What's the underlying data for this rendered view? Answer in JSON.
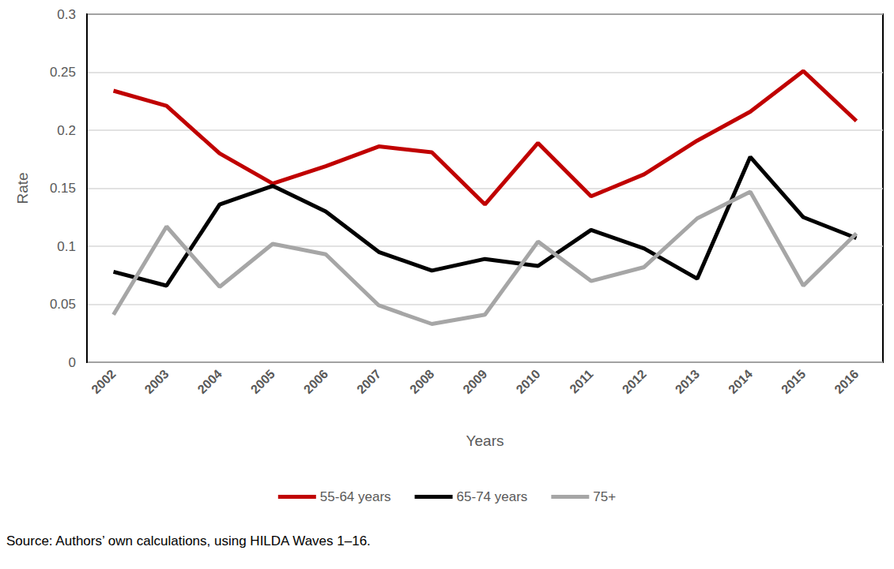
{
  "chart_data": {
    "type": "line",
    "x_label": "Years",
    "y_label": "Rate",
    "source": "Source: Authors’ own calculations, using HILDA Waves 1–16.",
    "categories": [
      "2002",
      "2003",
      "2004",
      "2005",
      "2006",
      "2007",
      "2008",
      "2009",
      "2010",
      "2011",
      "2012",
      "2013",
      "2014",
      "2015",
      "2016"
    ],
    "series": [
      {
        "name": "55-64 years",
        "color": "#c00000",
        "values": [
          0.234,
          0.221,
          0.18,
          0.154,
          0.169,
          0.186,
          0.181,
          0.136,
          0.189,
          0.143,
          0.162,
          0.191,
          0.216,
          0.251,
          0.208
        ]
      },
      {
        "name": "65-74 years",
        "color": "#000000",
        "values": [
          0.078,
          0.066,
          0.136,
          0.152,
          0.13,
          0.095,
          0.079,
          0.089,
          0.083,
          0.114,
          0.098,
          0.072,
          0.177,
          0.125,
          0.107
        ]
      },
      {
        "name": "75+",
        "color": "#a6a6a6",
        "values": [
          0.041,
          0.117,
          0.065,
          0.102,
          0.093,
          0.049,
          0.033,
          0.041,
          0.104,
          0.07,
          0.082,
          0.124,
          0.147,
          0.066,
          0.111
        ]
      }
    ],
    "ylim": [
      0,
      0.3
    ],
    "yticks": [
      0,
      0.05,
      0.1,
      0.15,
      0.2,
      0.25,
      0.3
    ],
    "grid": true,
    "legend": "bottom",
    "marker": "none"
  }
}
